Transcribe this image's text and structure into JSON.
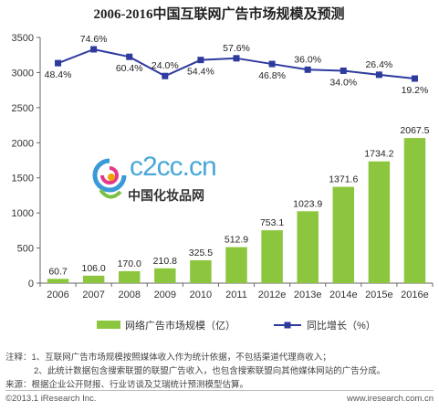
{
  "chart_data": {
    "type": "bar",
    "title": "2006-2016中国互联网广告市场规模及预测",
    "categories": [
      "2006",
      "2007",
      "2008",
      "2009",
      "2010",
      "2011",
      "2012e",
      "2013e",
      "2014e",
      "2015e",
      "2016e"
    ],
    "series": [
      {
        "name": "网络广告市场规模（亿）",
        "type": "bar",
        "values": [
          60.7,
          106.0,
          170.0,
          210.8,
          325.5,
          512.9,
          753.1,
          1023.9,
          1371.6,
          1734.2,
          2067.5
        ],
        "labels": [
          "60.7",
          "106.0",
          "170.0",
          "210.8",
          "325.5",
          "512.9",
          "753.1",
          "1023.9",
          "1371.6",
          "1734.2",
          "2067.5"
        ]
      },
      {
        "name": "同比增长（%）",
        "type": "line",
        "values": [
          48.4,
          74.6,
          60.4,
          24.0,
          54.4,
          57.6,
          46.8,
          36.0,
          34.0,
          26.4,
          19.2
        ],
        "labels": [
          "48.4%",
          "74.6%",
          "60.4%",
          "24.0%",
          "54.4%",
          "57.6%",
          "46.8%",
          "36.0%",
          "34.0%",
          "26.4%",
          "19.2%"
        ]
      }
    ],
    "ylim": [
      0,
      3500
    ],
    "yticks": [
      "0",
      "500",
      "1000",
      "1500",
      "2000",
      "2500",
      "3000",
      "3500"
    ],
    "legend_position": "bottom",
    "grid": false,
    "colors": {
      "bar": "#8cc63f",
      "line": "#2e3a9e"
    }
  },
  "watermark": {
    "domain": "c2cc.cn",
    "name": "中国化妆品网"
  },
  "notes": [
    "注释：1、互联网广告市场规模按照媒体收入作为统计依据，不包括渠道代理商收入；",
    "2、此统计数据包含搜索联盟的联盟广告收入，也包含搜索联盟向其他媒体网站的广告分成。",
    "来源：根据企业公开财报、行业访谈及艾瑞统计预测模型估算。"
  ],
  "footer": {
    "left": "©2013.1 iResearch Inc.",
    "right": "www.iresearch.com.cn"
  }
}
